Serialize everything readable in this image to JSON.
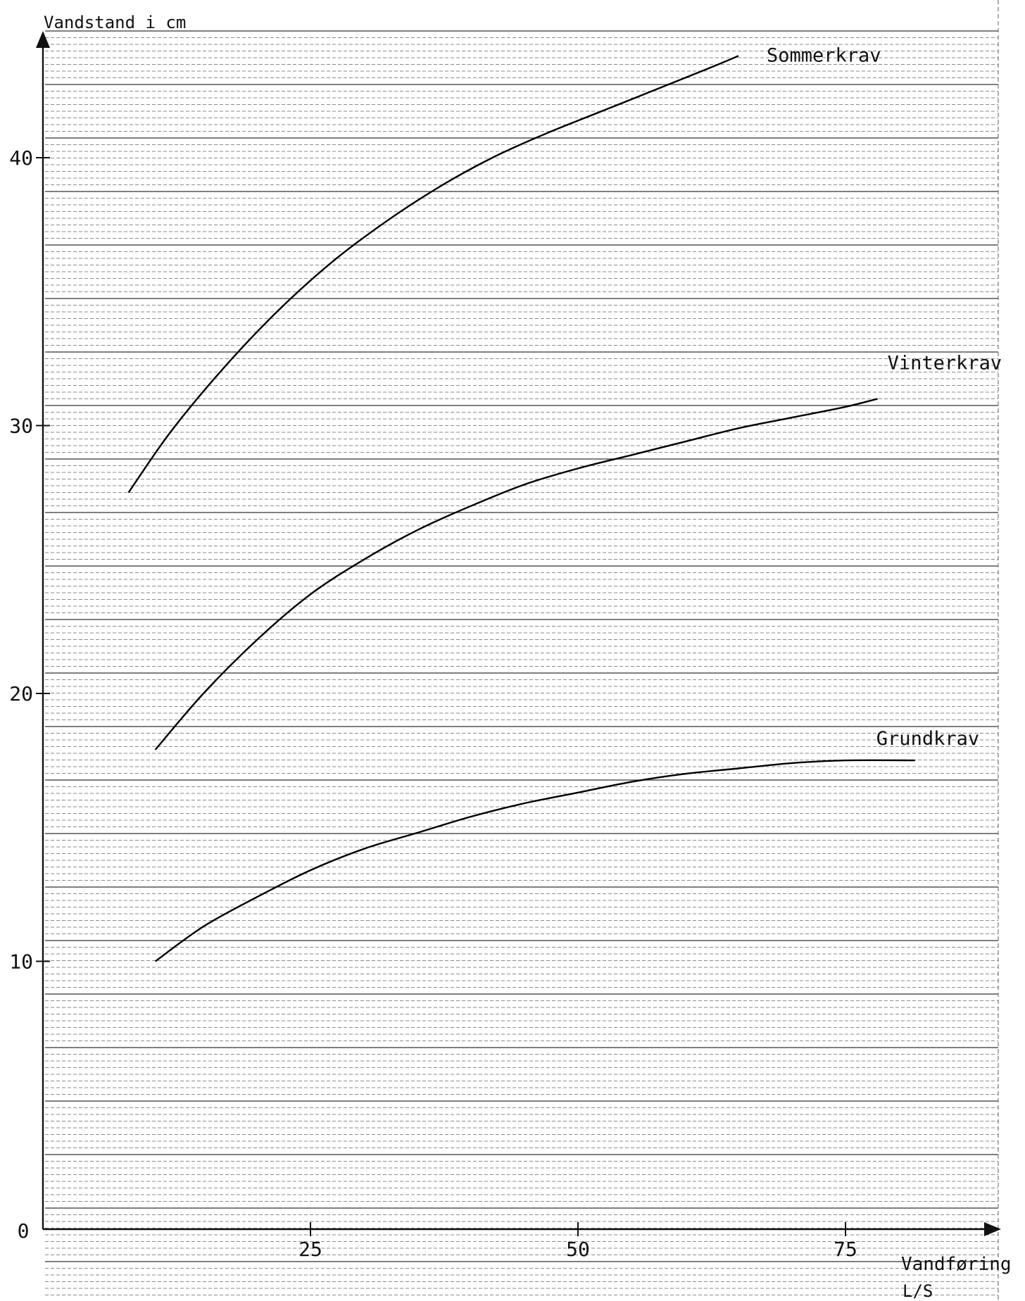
{
  "chart_data": {
    "type": "line",
    "ylabel": "Vandstand i cm",
    "xlabel": "Vandføring",
    "xunit": "L/S",
    "xlim": [
      0,
      87
    ],
    "ylim": [
      0,
      44
    ],
    "xticks": [
      {
        "value": 0,
        "label": "0"
      },
      {
        "value": 25,
        "label": "25"
      },
      {
        "value": 50,
        "label": "50"
      },
      {
        "value": 75,
        "label": "75"
      }
    ],
    "yticks": [
      {
        "value": 10,
        "label": "10"
      },
      {
        "value": 20,
        "label": "20"
      },
      {
        "value": 30,
        "label": "30"
      },
      {
        "value": 40,
        "label": "40"
      }
    ],
    "grid": "dense horizontal ruling",
    "series": [
      {
        "name": "Sommerkrav",
        "x": [
          8,
          12,
          17,
          22,
          27,
          32,
          37,
          42,
          47,
          52,
          57,
          62,
          65
        ],
        "y": [
          27.5,
          29.8,
          32.2,
          34.3,
          36.1,
          37.6,
          38.9,
          40.0,
          40.9,
          41.7,
          42.5,
          43.3,
          43.8
        ]
      },
      {
        "name": "Vinterkrav",
        "x": [
          10.5,
          15,
          20,
          25,
          30,
          35,
          40,
          45,
          50,
          55,
          60,
          65,
          70,
          75,
          78
        ],
        "y": [
          17.9,
          20.0,
          22.0,
          23.7,
          25.0,
          26.1,
          27.0,
          27.8,
          28.4,
          28.9,
          29.4,
          29.9,
          30.3,
          30.7,
          31.0
        ]
      },
      {
        "name": "Grundkrav",
        "x": [
          10.5,
          15,
          20,
          25,
          30,
          35,
          40,
          45,
          50,
          55,
          60,
          65,
          70,
          75,
          81.5
        ],
        "y": [
          10.0,
          11.3,
          12.4,
          13.4,
          14.2,
          14.8,
          15.4,
          15.9,
          16.3,
          16.7,
          17.0,
          17.2,
          17.4,
          17.5,
          17.5
        ]
      }
    ]
  }
}
